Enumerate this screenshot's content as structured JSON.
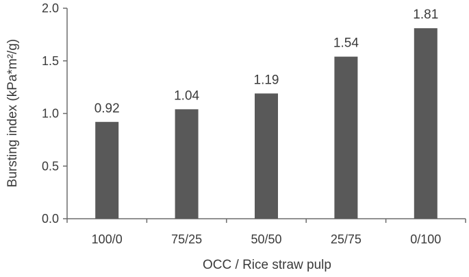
{
  "chart_data": {
    "type": "bar",
    "categories": [
      "100/0",
      "75/25",
      "50/50",
      "25/75",
      "0/100"
    ],
    "values": [
      0.92,
      1.04,
      1.19,
      1.54,
      1.81
    ],
    "data_labels": [
      "0.92",
      "1.04",
      "1.19",
      "1.54",
      "1.81"
    ],
    "xlabel": "OCC / Rice straw pulp",
    "ylabel": "Bursting index (kPa*m²/g)",
    "ylim": [
      0,
      2.0
    ],
    "yticks": [
      "0.0",
      "0.5",
      "1.0",
      "1.5",
      "2.0"
    ],
    "ytick_values": [
      0,
      0.5,
      1.0,
      1.5,
      2.0
    ],
    "grid": false,
    "legend": "none",
    "bar_color": "#595959"
  }
}
